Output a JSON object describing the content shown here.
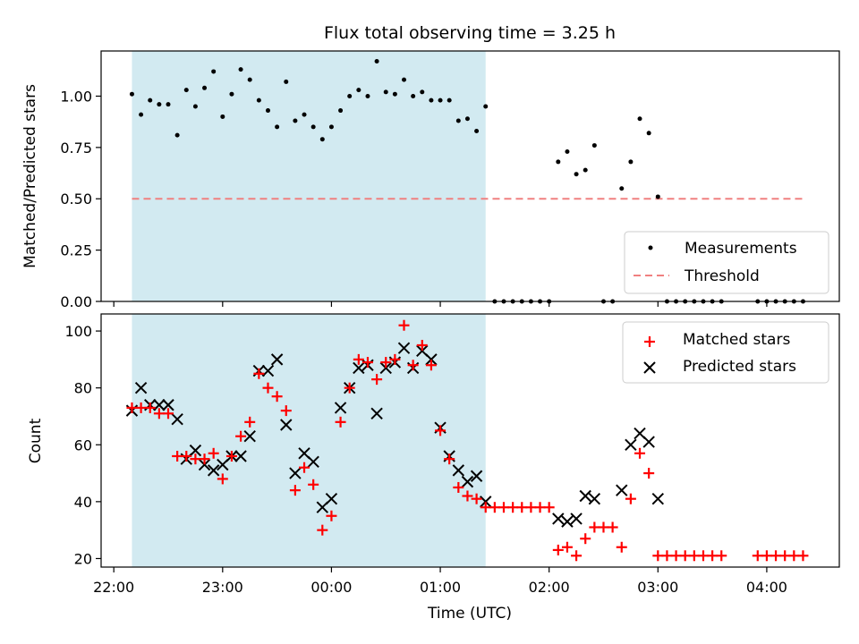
{
  "figure": {
    "title": "Flux total observing time = 3.25 h"
  },
  "colors": {
    "shade": "#add8e6",
    "threshold": "#f08080",
    "measurement": "#000000",
    "matched": "#ff0000",
    "predicted": "#000000"
  },
  "chart_data": [
    {
      "type": "scatter",
      "ylabel": "Matched/Predicted stars",
      "ylim": [
        0,
        1.22
      ],
      "yticks": [
        0.0,
        0.25,
        0.5,
        0.75,
        1.0
      ],
      "ytick_labels": [
        "0.00",
        "0.25",
        "0.50",
        "0.75",
        "1.00"
      ],
      "legend": [
        "Measurements",
        "Threshold"
      ],
      "legend_position": "lower-right",
      "shaded_region": {
        "from": "22:10",
        "to": "01:25"
      },
      "threshold": {
        "value": 0.5,
        "from": "22:10",
        "to": "04:20"
      },
      "series": [
        {
          "name": "Measurements",
          "marker": "dot",
          "x": [
            "22:10",
            "22:15",
            "22:20",
            "22:25",
            "22:30",
            "22:35",
            "22:40",
            "22:45",
            "22:50",
            "22:55",
            "23:00",
            "23:05",
            "23:10",
            "23:15",
            "23:20",
            "23:25",
            "23:30",
            "23:35",
            "23:40",
            "23:45",
            "23:50",
            "23:55",
            "00:00",
            "00:05",
            "00:10",
            "00:15",
            "00:20",
            "00:25",
            "00:30",
            "00:35",
            "00:40",
            "00:45",
            "00:50",
            "00:55",
            "01:00",
            "01:05",
            "01:10",
            "01:15",
            "01:20",
            "01:25",
            "01:30",
            "01:35",
            "01:40",
            "01:45",
            "01:50",
            "01:55",
            "02:00",
            "02:05",
            "02:10",
            "02:15",
            "02:20",
            "02:25",
            "02:30",
            "02:35",
            "02:40",
            "02:45",
            "02:50",
            "02:55",
            "03:00",
            "03:05",
            "03:10",
            "03:15",
            "03:20",
            "03:25",
            "03:30",
            "03:35",
            "03:55",
            "04:00",
            "04:05",
            "04:10",
            "04:15",
            "04:20"
          ],
          "y": [
            1.01,
            0.91,
            0.98,
            0.96,
            0.96,
            0.81,
            1.03,
            0.95,
            1.04,
            1.12,
            0.9,
            1.01,
            1.13,
            1.08,
            0.98,
            0.93,
            0.85,
            1.07,
            0.88,
            0.91,
            0.85,
            0.79,
            0.85,
            0.93,
            1.0,
            1.03,
            1.0,
            1.17,
            1.02,
            1.01,
            1.08,
            1.0,
            1.02,
            0.98,
            0.98,
            0.98,
            0.88,
            0.89,
            0.83,
            0.95,
            0.0,
            0.0,
            0.0,
            0.0,
            0.0,
            0.0,
            0.0,
            0.68,
            0.73,
            0.62,
            0.64,
            0.76,
            0.0,
            0.0,
            0.55,
            0.68,
            0.89,
            0.82,
            0.51,
            0.0,
            0.0,
            0.0,
            0.0,
            0.0,
            0.0,
            0.0,
            0.0,
            0.0,
            0.0,
            0.0,
            0.0,
            0.0
          ]
        }
      ]
    },
    {
      "type": "scatter",
      "ylabel": "Count",
      "xlabel": "Time (UTC)",
      "ylim": [
        17,
        106
      ],
      "yticks": [
        20,
        40,
        60,
        80,
        100
      ],
      "ytick_labels": [
        "20",
        "40",
        "60",
        "80",
        "100"
      ],
      "xticks": [
        "22:00",
        "23:00",
        "00:00",
        "01:00",
        "02:00",
        "03:00",
        "04:00"
      ],
      "xlim": [
        "21:53",
        "04:40"
      ],
      "legend": [
        "Matched stars",
        "Predicted stars"
      ],
      "legend_position": "upper-right",
      "shaded_region": {
        "from": "22:10",
        "to": "01:25"
      },
      "series": [
        {
          "name": "Matched stars",
          "marker": "plus",
          "x": [
            "22:10",
            "22:15",
            "22:20",
            "22:25",
            "22:30",
            "22:35",
            "22:40",
            "22:45",
            "22:50",
            "22:55",
            "23:00",
            "23:05",
            "23:10",
            "23:15",
            "23:20",
            "23:25",
            "23:30",
            "23:35",
            "23:40",
            "23:45",
            "23:50",
            "23:55",
            "00:00",
            "00:05",
            "00:10",
            "00:15",
            "00:20",
            "00:25",
            "00:30",
            "00:35",
            "00:40",
            "00:45",
            "00:50",
            "00:55",
            "01:00",
            "01:05",
            "01:10",
            "01:15",
            "01:20",
            "01:25",
            "01:30",
            "01:35",
            "01:40",
            "01:45",
            "01:50",
            "01:55",
            "02:00",
            "02:05",
            "02:10",
            "02:15",
            "02:20",
            "02:25",
            "02:30",
            "02:35",
            "02:40",
            "02:45",
            "02:50",
            "02:55",
            "03:00",
            "03:05",
            "03:10",
            "03:15",
            "03:20",
            "03:25",
            "03:30",
            "03:35",
            "03:55",
            "04:00",
            "04:05",
            "04:10",
            "04:15",
            "04:20"
          ],
          "y": [
            73,
            73,
            73,
            71,
            71,
            56,
            56,
            55,
            55,
            57,
            48,
            56,
            63,
            68,
            85,
            80,
            77,
            72,
            44,
            52,
            46,
            30,
            35,
            68,
            80,
            90,
            89,
            83,
            89,
            90,
            102,
            88,
            95,
            88,
            65,
            55,
            45,
            42,
            41,
            38,
            38,
            38,
            38,
            38,
            38,
            38,
            38,
            23,
            24,
            21,
            27,
            31,
            31,
            31,
            24,
            41,
            57,
            50,
            21,
            21,
            21,
            21,
            21,
            21,
            21,
            21,
            21,
            21,
            21,
            21,
            21,
            21
          ]
        },
        {
          "name": "Predicted stars",
          "marker": "x",
          "x": [
            "22:10",
            "22:15",
            "22:20",
            "22:25",
            "22:30",
            "22:35",
            "22:40",
            "22:45",
            "22:50",
            "22:55",
            "23:00",
            "23:05",
            "23:10",
            "23:15",
            "23:20",
            "23:25",
            "23:30",
            "23:35",
            "23:40",
            "23:45",
            "23:50",
            "23:55",
            "00:00",
            "00:05",
            "00:10",
            "00:15",
            "00:20",
            "00:25",
            "00:30",
            "00:35",
            "00:40",
            "00:45",
            "00:50",
            "00:55",
            "01:00",
            "01:05",
            "01:10",
            "01:15",
            "01:20",
            "01:25",
            "02:05",
            "02:10",
            "02:15",
            "02:20",
            "02:25",
            "02:40",
            "02:45",
            "02:50",
            "02:55",
            "03:00"
          ],
          "y": [
            72,
            80,
            74,
            74,
            74,
            69,
            55,
            58,
            53,
            51,
            53,
            56,
            56,
            63,
            86,
            86,
            90,
            67,
            50,
            57,
            54,
            38,
            41,
            73,
            80,
            87,
            88,
            71,
            87,
            89,
            94,
            87,
            93,
            90,
            66,
            56,
            51,
            47,
            49,
            40,
            34,
            33,
            34,
            42,
            41,
            44,
            60,
            64,
            61,
            41
          ]
        }
      ]
    }
  ]
}
